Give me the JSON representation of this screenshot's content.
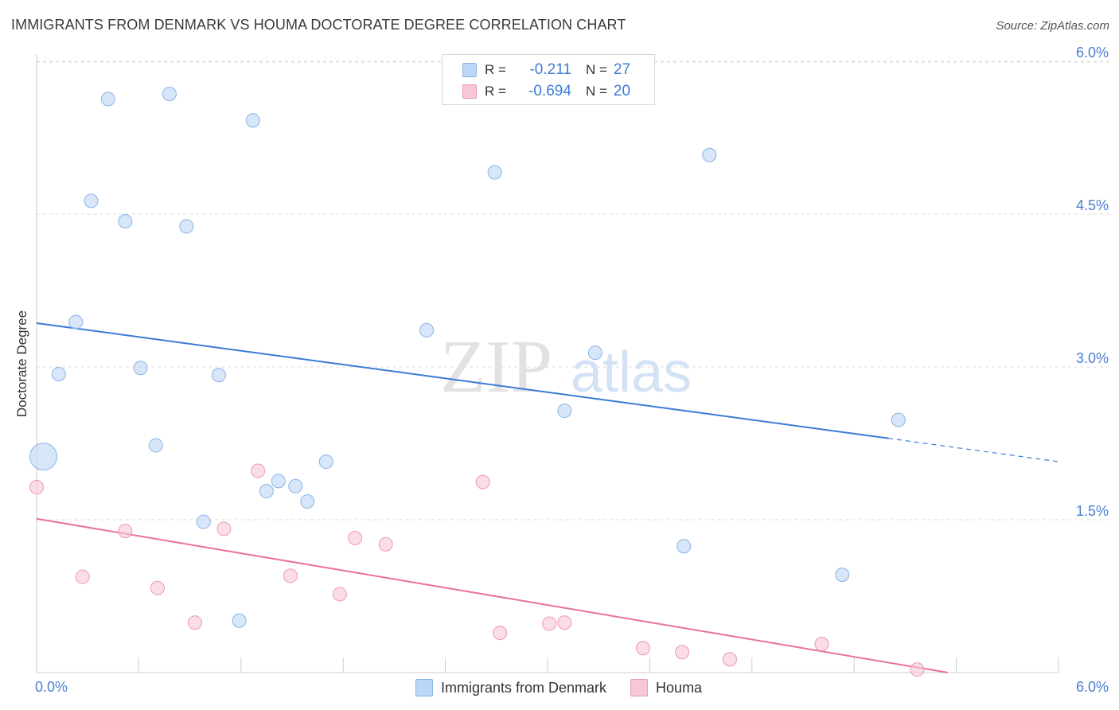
{
  "title": "IMMIGRANTS FROM DENMARK VS HOUMA DOCTORATE DEGREE CORRELATION CHART",
  "source": "Source: ZipAtlas.com",
  "watermark": {
    "zip": "ZIP",
    "atlas": "atlas"
  },
  "colors": {
    "blue_fill": "#bcd6f5",
    "blue_stroke": "#8ab4e4",
    "blue_line": "#3a7bd5",
    "pink_fill": "#f8c7d5",
    "pink_stroke": "#ea9ab3",
    "pink_line": "#e8729a",
    "grid": "#dddddd",
    "tick_label": "#4a7fd0"
  },
  "stats_legend": [
    {
      "r_label": "R =",
      "r_value": "-0.211",
      "n_label": "N =",
      "n_value": "27",
      "swatch": "blue"
    },
    {
      "r_label": "R =",
      "r_value": "-0.694",
      "n_label": "N =",
      "n_value": "20",
      "swatch": "pink"
    }
  ],
  "bottom_legend": [
    "Immigrants from Denmark",
    "Houma"
  ],
  "chart_data": {
    "type": "scatter",
    "title": "IMMIGRANTS FROM DENMARK VS HOUMA DOCTORATE DEGREE CORRELATION CHART",
    "xlabel": "",
    "ylabel": "Doctorate Degree",
    "xlim": [
      0,
      6
    ],
    "ylim": [
      0,
      6.2
    ],
    "x_tick_labels": [
      "0.0%",
      "6.0%"
    ],
    "y_ticks": [
      1.5,
      3.0,
      4.5,
      6.0
    ],
    "y_tick_labels": [
      "1.5%",
      "3.0%",
      "4.5%",
      "6.0%"
    ],
    "grid": "horizontal dashed",
    "series": [
      {
        "name": "Immigrants from Denmark",
        "color": "blue",
        "points": [
          {
            "x": 0.42,
            "y": 5.63
          },
          {
            "x": 0.78,
            "y": 5.68
          },
          {
            "x": 1.27,
            "y": 5.42
          },
          {
            "x": 2.69,
            "y": 4.91
          },
          {
            "x": 3.95,
            "y": 5.08
          },
          {
            "x": 0.32,
            "y": 4.63
          },
          {
            "x": 0.52,
            "y": 4.43
          },
          {
            "x": 0.88,
            "y": 4.38
          },
          {
            "x": 0.23,
            "y": 3.44
          },
          {
            "x": 2.29,
            "y": 3.36
          },
          {
            "x": 3.28,
            "y": 3.14
          },
          {
            "x": 0.13,
            "y": 2.93
          },
          {
            "x": 0.61,
            "y": 2.99
          },
          {
            "x": 1.07,
            "y": 2.92
          },
          {
            "x": 3.1,
            "y": 2.57
          },
          {
            "x": 5.06,
            "y": 2.48
          },
          {
            "x": 0.04,
            "y": 2.12,
            "size": "large"
          },
          {
            "x": 0.7,
            "y": 2.23
          },
          {
            "x": 1.7,
            "y": 2.07
          },
          {
            "x": 1.42,
            "y": 1.88
          },
          {
            "x": 1.35,
            "y": 1.78
          },
          {
            "x": 1.52,
            "y": 1.83
          },
          {
            "x": 1.59,
            "y": 1.68
          },
          {
            "x": 0.98,
            "y": 1.48
          },
          {
            "x": 3.8,
            "y": 1.24
          },
          {
            "x": 4.73,
            "y": 0.96
          },
          {
            "x": 1.19,
            "y": 0.51
          }
        ],
        "trend": {
          "x0": 0,
          "y0": 3.43,
          "x1": 5.0,
          "y1": 2.3,
          "dash_to_x": 6.0,
          "dash_to_y": 2.07
        }
      },
      {
        "name": "Houma",
        "color": "pink",
        "points": [
          {
            "x": 0.0,
            "y": 1.82
          },
          {
            "x": 1.3,
            "y": 1.98
          },
          {
            "x": 2.62,
            "y": 1.87
          },
          {
            "x": 0.52,
            "y": 1.39
          },
          {
            "x": 1.1,
            "y": 1.41
          },
          {
            "x": 1.87,
            "y": 1.32
          },
          {
            "x": 2.05,
            "y": 1.26
          },
          {
            "x": 0.27,
            "y": 0.94
          },
          {
            "x": 1.49,
            "y": 0.95
          },
          {
            "x": 0.71,
            "y": 0.83
          },
          {
            "x": 1.78,
            "y": 0.77
          },
          {
            "x": 0.93,
            "y": 0.49
          },
          {
            "x": 3.01,
            "y": 0.48
          },
          {
            "x": 3.1,
            "y": 0.49
          },
          {
            "x": 2.72,
            "y": 0.39
          },
          {
            "x": 3.56,
            "y": 0.24
          },
          {
            "x": 3.79,
            "y": 0.2
          },
          {
            "x": 4.07,
            "y": 0.13
          },
          {
            "x": 4.61,
            "y": 0.28
          },
          {
            "x": 5.17,
            "y": 0.03
          }
        ],
        "trend": {
          "x0": 0,
          "y0": 1.51,
          "x1": 5.35,
          "y1": 0.0
        }
      }
    ]
  }
}
